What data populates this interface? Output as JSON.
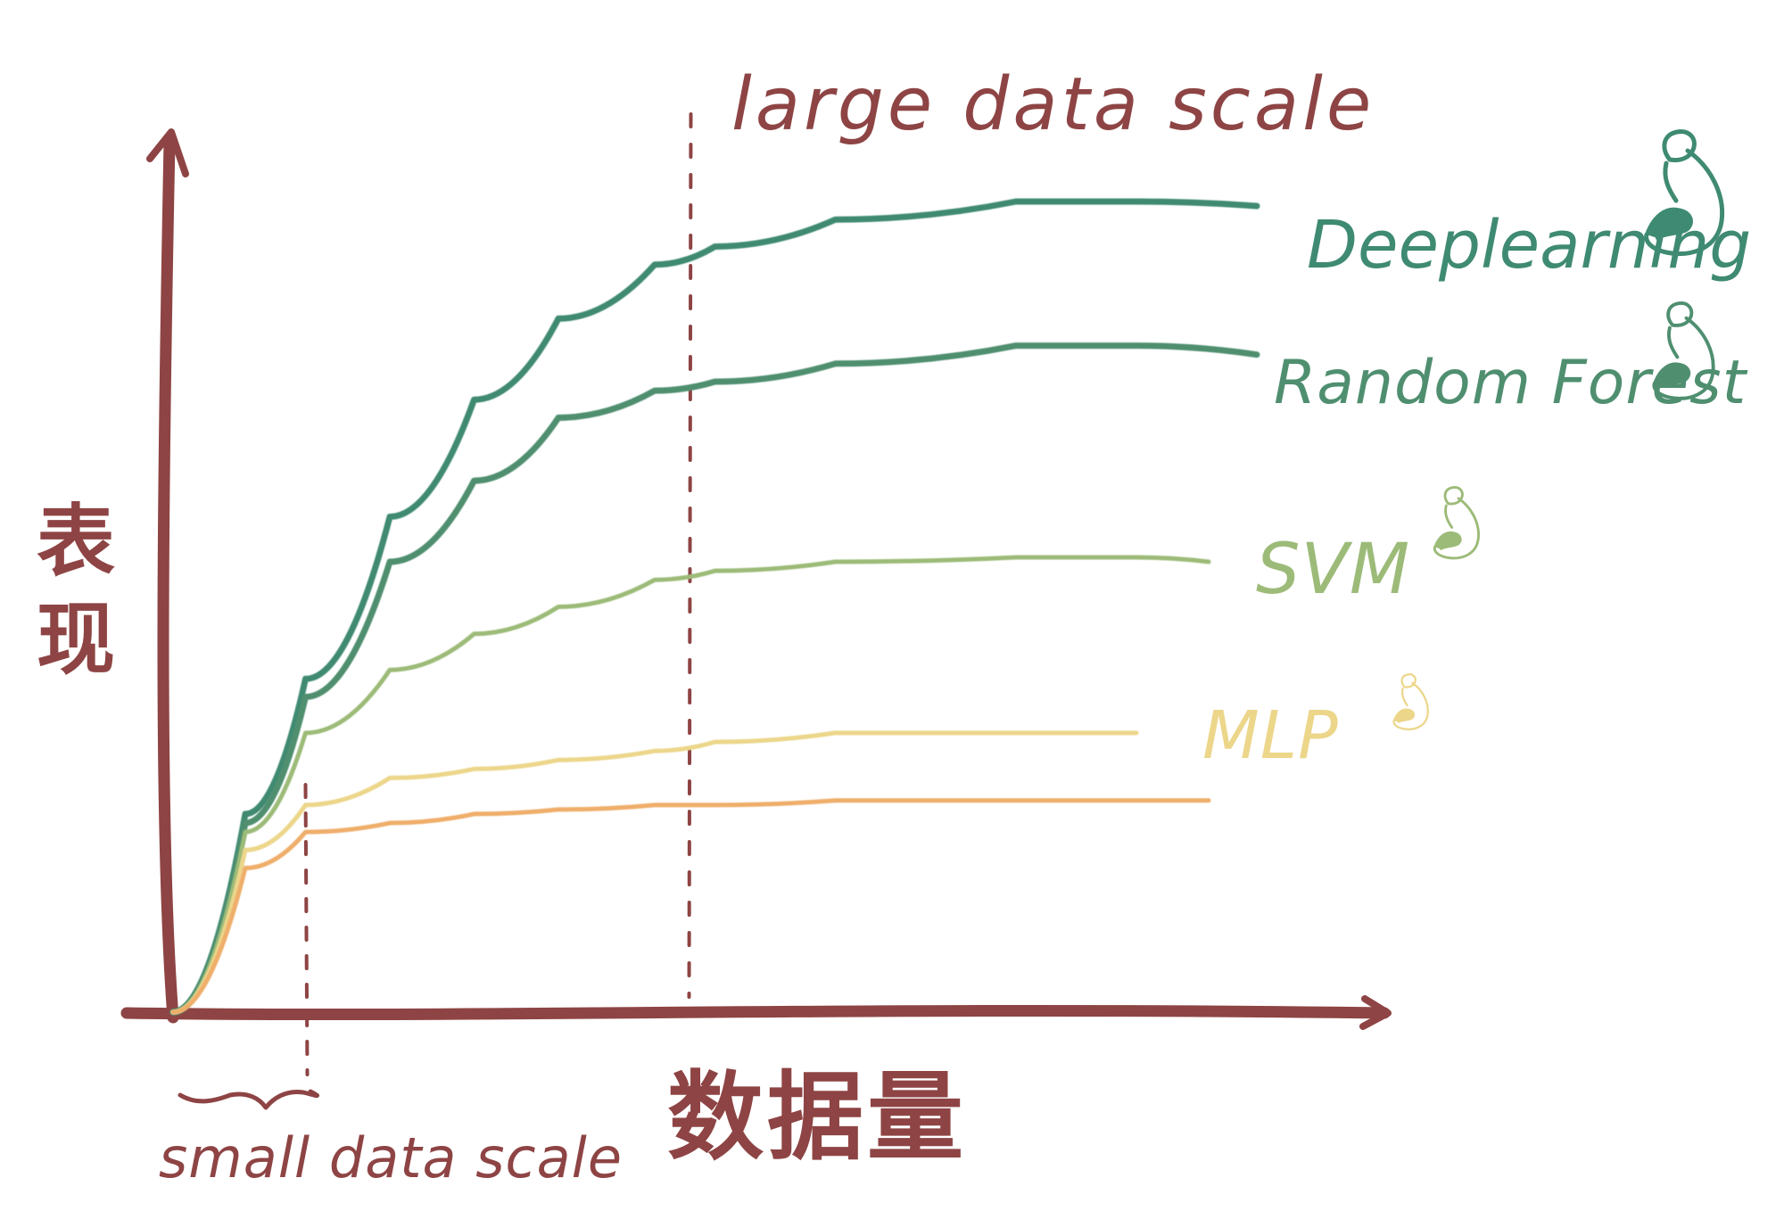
{
  "chart_data": {
    "type": "line",
    "title": "",
    "xlabel": "数据量",
    "ylabel": "表现",
    "xlim": [
      0,
      100
    ],
    "ylim": [
      0,
      100
    ],
    "grid": false,
    "legend": "right-of-lines",
    "annotations": {
      "small_scale_label": "small data scale",
      "large_scale_label": "large data scale",
      "small_scale_x": 11,
      "large_scale_x": 43
    },
    "series": [
      {
        "name": "Deeplearning",
        "color": "#3f8a72",
        "icon": "big-flexed-arm-icon",
        "points": [
          [
            0,
            0
          ],
          [
            6,
            22
          ],
          [
            11,
            37
          ],
          [
            18,
            55
          ],
          [
            25,
            68
          ],
          [
            32,
            77
          ],
          [
            40,
            83
          ],
          [
            45,
            85
          ],
          [
            55,
            88
          ],
          [
            70,
            90
          ],
          [
            80,
            90
          ],
          [
            90,
            89.5
          ]
        ]
      },
      {
        "name": "Random Forest",
        "color": "#4f8f70",
        "icon": "medium-flexed-arm-icon",
        "points": [
          [
            0,
            0
          ],
          [
            6,
            21
          ],
          [
            11,
            35
          ],
          [
            18,
            50
          ],
          [
            25,
            59
          ],
          [
            32,
            66
          ],
          [
            40,
            69
          ],
          [
            45,
            70
          ],
          [
            55,
            72
          ],
          [
            70,
            74
          ],
          [
            80,
            74
          ],
          [
            90,
            73
          ]
        ]
      },
      {
        "name": "SVM",
        "color": "#9cbb78",
        "icon": "small-flexed-arm-icon",
        "points": [
          [
            0,
            0
          ],
          [
            6,
            20
          ],
          [
            11,
            31
          ],
          [
            18,
            38
          ],
          [
            25,
            42
          ],
          [
            32,
            45
          ],
          [
            40,
            48
          ],
          [
            45,
            49
          ],
          [
            55,
            50
          ],
          [
            70,
            50.5
          ],
          [
            80,
            50.5
          ],
          [
            86,
            50
          ]
        ]
      },
      {
        "name": "MLP",
        "color": "#ecd68a",
        "icon": "tiny-flexed-arm-icon",
        "points": [
          [
            0,
            0
          ],
          [
            6,
            18
          ],
          [
            11,
            23
          ],
          [
            18,
            26
          ],
          [
            25,
            27
          ],
          [
            32,
            28
          ],
          [
            40,
            29
          ],
          [
            45,
            30
          ],
          [
            55,
            31
          ],
          [
            70,
            31
          ],
          [
            80,
            31
          ]
        ]
      },
      {
        "name": "",
        "color": "#efae6a",
        "icon": "",
        "points": [
          [
            0,
            0
          ],
          [
            6,
            16
          ],
          [
            11,
            20
          ],
          [
            18,
            21
          ],
          [
            25,
            22
          ],
          [
            32,
            22.5
          ],
          [
            40,
            23
          ],
          [
            45,
            23
          ],
          [
            55,
            23.5
          ],
          [
            70,
            23.5
          ],
          [
            86,
            23.5
          ]
        ]
      }
    ]
  },
  "colors": {
    "axis": "#8e4444"
  }
}
